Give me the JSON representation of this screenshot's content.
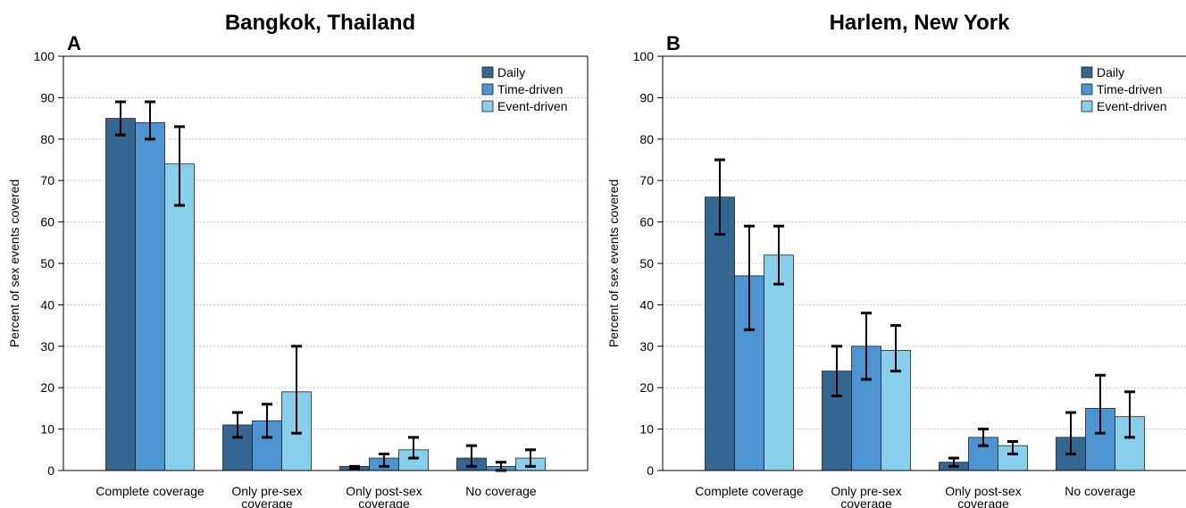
{
  "chart_data": [
    {
      "type": "bar",
      "title": "Bangkok, Thailand",
      "panel_label": "A",
      "y_label": "Percent of sex events covered",
      "categories": [
        [
          "Complete coverage"
        ],
        [
          "Only pre-sex",
          "coverage"
        ],
        [
          "Only post-sex",
          "coverage"
        ],
        [
          "No coverage"
        ]
      ],
      "series": [
        {
          "name": "Daily",
          "color": "#336690",
          "values": [
            85,
            11,
            1,
            3
          ],
          "ci_low": [
            81,
            8,
            0.5,
            1
          ],
          "ci_high": [
            89,
            14,
            1,
            6
          ]
        },
        {
          "name": "Time-driven",
          "color": "#4d94d0",
          "values": [
            84,
            12,
            3,
            1
          ],
          "ci_low": [
            80,
            8,
            1,
            0
          ],
          "ci_high": [
            89,
            16,
            4,
            2
          ]
        },
        {
          "name": "Event-driven",
          "color": "#87cfeb",
          "values": [
            74,
            19,
            5,
            3
          ],
          "ci_low": [
            64,
            9,
            3,
            1
          ],
          "ci_high": [
            83,
            30,
            8,
            5
          ]
        }
      ],
      "ylim": [
        0,
        100
      ],
      "yticks": [
        0,
        10,
        20,
        30,
        40,
        50,
        60,
        70,
        80,
        90,
        100
      ],
      "grid": true,
      "legend": "upper-right"
    },
    {
      "type": "bar",
      "title": "Harlem, New York",
      "panel_label": "B",
      "y_label": "Percent of sex events covered",
      "categories": [
        [
          "Complete coverage"
        ],
        [
          "Only pre-sex",
          "coverage"
        ],
        [
          "Only post-sex",
          "coverage"
        ],
        [
          "No coverage"
        ]
      ],
      "series": [
        {
          "name": "Daily",
          "color": "#336690",
          "values": [
            66,
            24,
            2,
            8
          ],
          "ci_low": [
            57,
            18,
            1,
            4
          ],
          "ci_high": [
            75,
            30,
            3,
            14
          ]
        },
        {
          "name": "Time-driven",
          "color": "#4d94d0",
          "values": [
            47,
            30,
            8,
            15
          ],
          "ci_low": [
            34,
            22,
            6,
            9
          ],
          "ci_high": [
            59,
            38,
            10,
            23
          ]
        },
        {
          "name": "Event-driven",
          "color": "#87cfeb",
          "values": [
            52,
            29,
            6,
            13
          ],
          "ci_low": [
            45,
            24,
            4,
            8
          ],
          "ci_high": [
            59,
            35,
            7,
            19
          ]
        }
      ],
      "ylim": [
        0,
        100
      ],
      "yticks": [
        0,
        10,
        20,
        30,
        40,
        50,
        60,
        70,
        80,
        90,
        100
      ],
      "grid": true,
      "legend": "upper-right"
    }
  ]
}
